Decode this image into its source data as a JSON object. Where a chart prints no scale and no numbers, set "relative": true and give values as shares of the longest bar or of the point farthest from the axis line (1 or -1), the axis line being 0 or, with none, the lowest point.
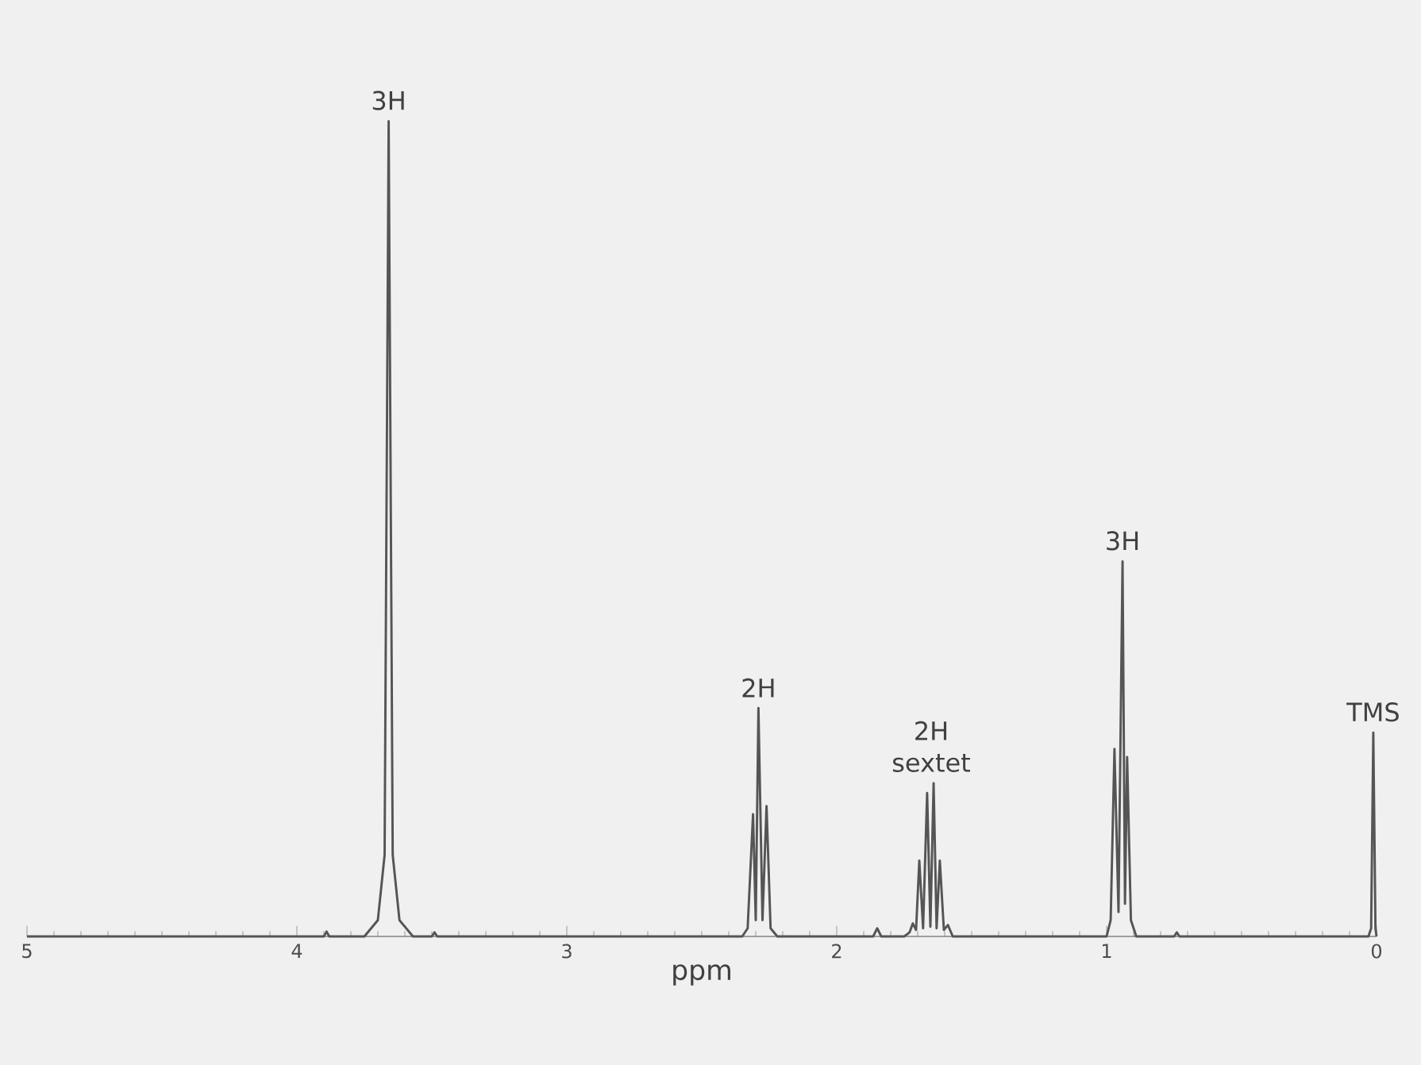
{
  "chart_data": {
    "type": "line",
    "relative": true,
    "xlabel": "ppm",
    "xlim": [
      5,
      0
    ],
    "xticks": [
      5,
      4,
      3,
      2,
      1,
      0
    ],
    "series": [
      {
        "color": "#555555",
        "x": [
          5,
          3.9,
          3.89,
          3.88,
          3.75,
          3.7,
          3.675,
          3.66,
          3.645,
          3.62,
          3.57,
          3.5,
          3.49,
          3.48,
          2.35,
          2.33,
          2.31,
          2.3,
          2.29,
          2.275,
          2.26,
          2.245,
          2.22,
          1.9,
          1.865,
          1.85,
          1.835,
          1.75,
          1.73,
          1.718,
          1.706,
          1.694,
          1.68,
          1.665,
          1.653,
          1.641,
          1.63,
          1.618,
          1.603,
          1.588,
          1.57,
          1.2,
          1.0,
          0.985,
          0.971,
          0.956,
          0.941,
          0.932,
          0.924,
          0.91,
          0.89,
          0.75,
          0.74,
          0.73,
          0.03,
          0.02,
          0.012,
          0.004,
          0
        ],
        "values": [
          0,
          0,
          0.006,
          0,
          0,
          0.02,
          0.1,
          1,
          0.1,
          0.02,
          0,
          0,
          0.005,
          0,
          0,
          0.01,
          0.15,
          0.02,
          0.28,
          0.02,
          0.16,
          0.01,
          0,
          0,
          0,
          0.01,
          0,
          0,
          0.005,
          0.016,
          0.008,
          0.093,
          0.01,
          0.176,
          0.012,
          0.188,
          0.01,
          0.093,
          0.008,
          0.014,
          0,
          0,
          0,
          0.02,
          0.23,
          0.03,
          0.46,
          0.04,
          0.22,
          0.02,
          0,
          0,
          0.005,
          0,
          0,
          0.01,
          0.25,
          0.01,
          0
        ]
      }
    ],
    "annotations": [
      {
        "text": "3H",
        "x": 3.66,
        "y": 1
      },
      {
        "text": "2H",
        "x": 2.29,
        "y": 0.28
      },
      {
        "text": "2H sextet",
        "x": 1.65,
        "y": 0.188
      },
      {
        "text": "3H",
        "x": 0.941,
        "y": 0.46
      },
      {
        "text": "TMS",
        "x": 0.012,
        "y": 0.25
      }
    ],
    "grid": false,
    "marker": "none",
    "line_style": "solid"
  }
}
